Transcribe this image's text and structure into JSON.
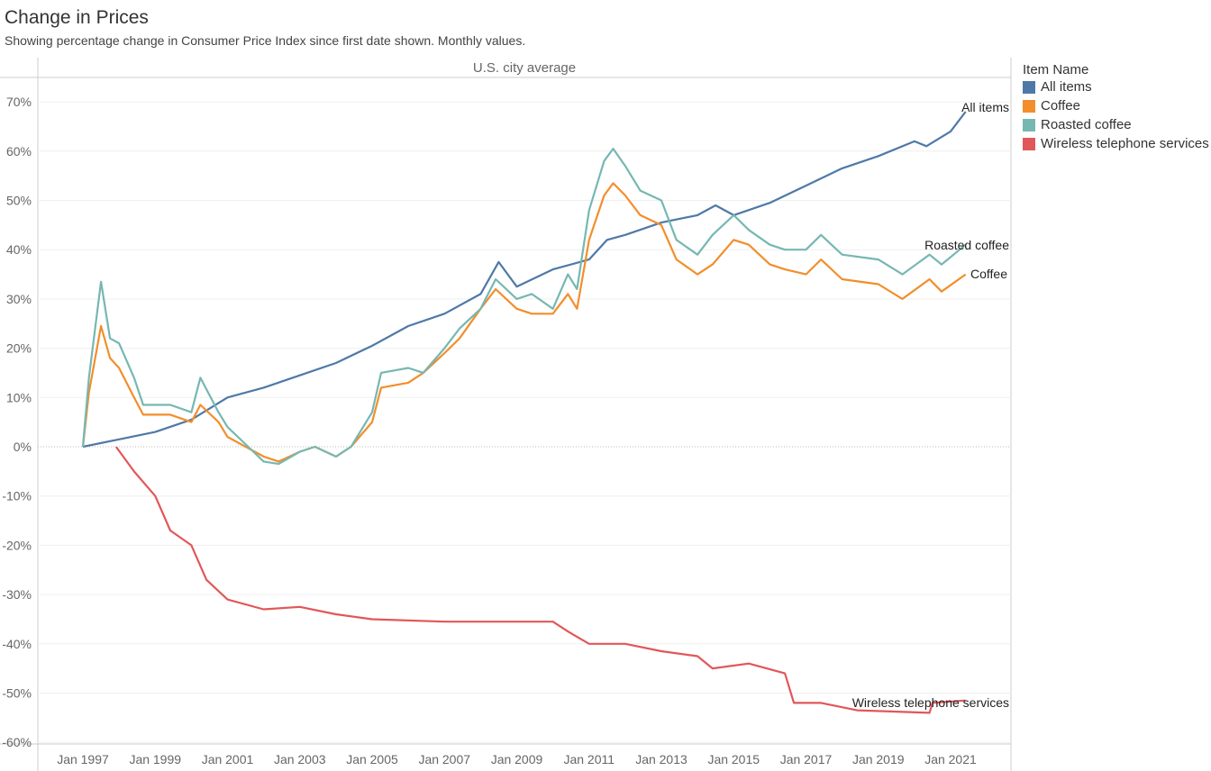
{
  "chart_data": {
    "type": "line",
    "title": "Change in Prices",
    "subtitle": "Showing percentage change in Consumer Price Index since first date shown. Monthly values.",
    "panel_header": "U.S. city average",
    "xlabel": "",
    "ylabel": "",
    "ylim": [
      -62,
      75
    ],
    "yticks": [
      70,
      60,
      50,
      40,
      30,
      20,
      10,
      0,
      -10,
      -20,
      -30,
      -40,
      -50,
      -60
    ],
    "ytick_labels": [
      "70%",
      "60%",
      "50%",
      "40%",
      "30%",
      "20%",
      "10%",
      "0%",
      "-10%",
      "-20%",
      "-30%",
      "-40%",
      "-50%",
      "-60%"
    ],
    "xticks": [
      "Jan 1997",
      "Jan 1999",
      "Jan 2001",
      "Jan 2003",
      "Jan 2005",
      "Jan 2007",
      "Jan 2009",
      "Jan 2011",
      "Jan 2013",
      "Jan 2015",
      "Jan 2017",
      "Jan 2019",
      "Jan 2021"
    ],
    "xlim": [
      "1995-09",
      "2022-06"
    ],
    "grid": true,
    "legend": {
      "title": "Item Name",
      "position": "right"
    },
    "series": [
      {
        "name": "All items",
        "color": "#4e79a7",
        "end_label": "All items",
        "points": [
          [
            "1997-01",
            0
          ],
          [
            "1998-01",
            1.5
          ],
          [
            "1999-01",
            3
          ],
          [
            "2000-01",
            5.5
          ],
          [
            "2001-01",
            10
          ],
          [
            "2002-01",
            12
          ],
          [
            "2003-01",
            14.5
          ],
          [
            "2004-01",
            17
          ],
          [
            "2005-01",
            20.5
          ],
          [
            "2006-01",
            24.5
          ],
          [
            "2007-01",
            27
          ],
          [
            "2008-01",
            31
          ],
          [
            "2008-07",
            37.5
          ],
          [
            "2009-01",
            32.5
          ],
          [
            "2010-01",
            36
          ],
          [
            "2011-01",
            38
          ],
          [
            "2011-07",
            42
          ],
          [
            "2012-01",
            43
          ],
          [
            "2013-01",
            45.5
          ],
          [
            "2014-01",
            47
          ],
          [
            "2014-07",
            49
          ],
          [
            "2015-01",
            47
          ],
          [
            "2016-01",
            49.5
          ],
          [
            "2017-01",
            53
          ],
          [
            "2018-01",
            56.5
          ],
          [
            "2019-01",
            59
          ],
          [
            "2020-01",
            62
          ],
          [
            "2020-05",
            61
          ],
          [
            "2021-01",
            64
          ],
          [
            "2021-06",
            68
          ]
        ]
      },
      {
        "name": "Coffee",
        "color": "#f28e2b",
        "end_label": "Coffee",
        "points": [
          [
            "1997-01",
            0
          ],
          [
            "1997-03",
            11
          ],
          [
            "1997-07",
            24.5
          ],
          [
            "1997-10",
            18
          ],
          [
            "1998-01",
            16
          ],
          [
            "1998-06",
            10
          ],
          [
            "1998-09",
            6.5
          ],
          [
            "1999-06",
            6.5
          ],
          [
            "2000-01",
            5
          ],
          [
            "2000-04",
            8.5
          ],
          [
            "2000-10",
            5
          ],
          [
            "2001-01",
            2
          ],
          [
            "2002-01",
            -2
          ],
          [
            "2002-06",
            -3
          ],
          [
            "2003-01",
            -1
          ],
          [
            "2003-06",
            0
          ],
          [
            "2004-01",
            -2
          ],
          [
            "2004-06",
            0
          ],
          [
            "2005-01",
            5
          ],
          [
            "2005-04",
            12
          ],
          [
            "2006-01",
            13
          ],
          [
            "2006-06",
            15
          ],
          [
            "2007-01",
            19
          ],
          [
            "2007-06",
            22
          ],
          [
            "2008-01",
            28
          ],
          [
            "2008-06",
            32
          ],
          [
            "2009-01",
            28
          ],
          [
            "2009-06",
            27
          ],
          [
            "2010-01",
            27
          ],
          [
            "2010-06",
            31
          ],
          [
            "2010-09",
            28
          ],
          [
            "2011-01",
            42
          ],
          [
            "2011-06",
            51
          ],
          [
            "2011-09",
            53.5
          ],
          [
            "2012-01",
            51
          ],
          [
            "2012-06",
            47
          ],
          [
            "2013-01",
            45
          ],
          [
            "2013-06",
            38
          ],
          [
            "2014-01",
            35
          ],
          [
            "2014-06",
            37
          ],
          [
            "2015-01",
            42
          ],
          [
            "2015-06",
            41
          ],
          [
            "2016-01",
            37
          ],
          [
            "2016-06",
            36
          ],
          [
            "2017-01",
            35
          ],
          [
            "2017-06",
            38
          ],
          [
            "2018-01",
            34
          ],
          [
            "2019-01",
            33
          ],
          [
            "2019-09",
            30
          ],
          [
            "2020-06",
            34
          ],
          [
            "2020-10",
            31.5
          ],
          [
            "2021-06",
            35
          ]
        ]
      },
      {
        "name": "Roasted coffee",
        "color": "#76b7b2",
        "end_label": "Roasted coffee",
        "points": [
          [
            "1997-01",
            0
          ],
          [
            "1997-03",
            14
          ],
          [
            "1997-07",
            33.5
          ],
          [
            "1997-10",
            22
          ],
          [
            "1998-01",
            21
          ],
          [
            "1998-06",
            14
          ],
          [
            "1998-09",
            8.5
          ],
          [
            "1999-06",
            8.5
          ],
          [
            "2000-01",
            7
          ],
          [
            "2000-04",
            14
          ],
          [
            "2000-10",
            7
          ],
          [
            "2001-01",
            4
          ],
          [
            "2002-01",
            -3
          ],
          [
            "2002-06",
            -3.5
          ],
          [
            "2003-01",
            -1
          ],
          [
            "2003-06",
            0
          ],
          [
            "2004-01",
            -2
          ],
          [
            "2004-06",
            0
          ],
          [
            "2005-01",
            7
          ],
          [
            "2005-04",
            15
          ],
          [
            "2006-01",
            16
          ],
          [
            "2006-06",
            15
          ],
          [
            "2007-01",
            20
          ],
          [
            "2007-06",
            24
          ],
          [
            "2008-01",
            28
          ],
          [
            "2008-06",
            34
          ],
          [
            "2009-01",
            30
          ],
          [
            "2009-06",
            31
          ],
          [
            "2010-01",
            28
          ],
          [
            "2010-06",
            35
          ],
          [
            "2010-09",
            32
          ],
          [
            "2011-01",
            48
          ],
          [
            "2011-06",
            58
          ],
          [
            "2011-09",
            60.5
          ],
          [
            "2012-01",
            57
          ],
          [
            "2012-06",
            52
          ],
          [
            "2013-01",
            50
          ],
          [
            "2013-06",
            42
          ],
          [
            "2014-01",
            39
          ],
          [
            "2014-06",
            43
          ],
          [
            "2015-01",
            47
          ],
          [
            "2015-06",
            44
          ],
          [
            "2016-01",
            41
          ],
          [
            "2016-06",
            40
          ],
          [
            "2017-01",
            40
          ],
          [
            "2017-06",
            43
          ],
          [
            "2018-01",
            39
          ],
          [
            "2019-01",
            38
          ],
          [
            "2019-09",
            35
          ],
          [
            "2020-06",
            39
          ],
          [
            "2020-10",
            37
          ],
          [
            "2021-06",
            41
          ]
        ]
      },
      {
        "name": "Wireless telephone services",
        "color": "#e15759",
        "end_label": "Wireless telephone services",
        "points": [
          [
            "1997-12",
            0
          ],
          [
            "1998-06",
            -5
          ],
          [
            "1999-01",
            -10
          ],
          [
            "1999-06",
            -17
          ],
          [
            "2000-01",
            -20
          ],
          [
            "2000-06",
            -27
          ],
          [
            "2001-01",
            -31
          ],
          [
            "2002-01",
            -33
          ],
          [
            "2003-01",
            -32.5
          ],
          [
            "2004-01",
            -34
          ],
          [
            "2005-01",
            -35
          ],
          [
            "2007-01",
            -35.5
          ],
          [
            "2010-01",
            -35.5
          ],
          [
            "2010-06",
            -37.5
          ],
          [
            "2011-01",
            -40
          ],
          [
            "2012-01",
            -40
          ],
          [
            "2013-01",
            -41.5
          ],
          [
            "2014-01",
            -42.5
          ],
          [
            "2014-06",
            -45
          ],
          [
            "2015-06",
            -44
          ],
          [
            "2016-06",
            -46
          ],
          [
            "2016-09",
            -52
          ],
          [
            "2017-06",
            -52
          ],
          [
            "2018-06",
            -53.5
          ],
          [
            "2020-06",
            -54
          ],
          [
            "2020-07",
            -52
          ],
          [
            "2021-06",
            -51.5
          ]
        ]
      }
    ]
  }
}
